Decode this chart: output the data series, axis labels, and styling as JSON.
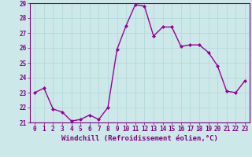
{
  "x": [
    0,
    1,
    2,
    3,
    4,
    5,
    6,
    7,
    8,
    9,
    10,
    11,
    12,
    13,
    14,
    15,
    16,
    17,
    18,
    19,
    20,
    21,
    22,
    23
  ],
  "y": [
    23.0,
    23.3,
    21.9,
    21.7,
    21.1,
    21.2,
    21.5,
    21.2,
    22.0,
    25.9,
    27.5,
    28.9,
    28.8,
    26.8,
    27.4,
    27.4,
    26.1,
    26.2,
    26.2,
    25.7,
    24.8,
    23.1,
    23.0,
    23.8
  ],
  "line_color": "#990099",
  "marker": "D",
  "marker_size": 2,
  "linewidth": 1.0,
  "xlabel": "Windchill (Refroidissement éolien,°C)",
  "xlabel_fontsize": 6.5,
  "ylim": [
    21,
    29
  ],
  "xlim": [
    -0.5,
    23.5
  ],
  "yticks": [
    21,
    22,
    23,
    24,
    25,
    26,
    27,
    28,
    29
  ],
  "xticks": [
    0,
    1,
    2,
    3,
    4,
    5,
    6,
    7,
    8,
    9,
    10,
    11,
    12,
    13,
    14,
    15,
    16,
    17,
    18,
    19,
    20,
    21,
    22,
    23
  ],
  "grid_color": "#b0d8d8",
  "background_color": "#cce8e8",
  "tick_fontsize": 5.5,
  "label_color": "#800080",
  "spine_color": "#800080"
}
